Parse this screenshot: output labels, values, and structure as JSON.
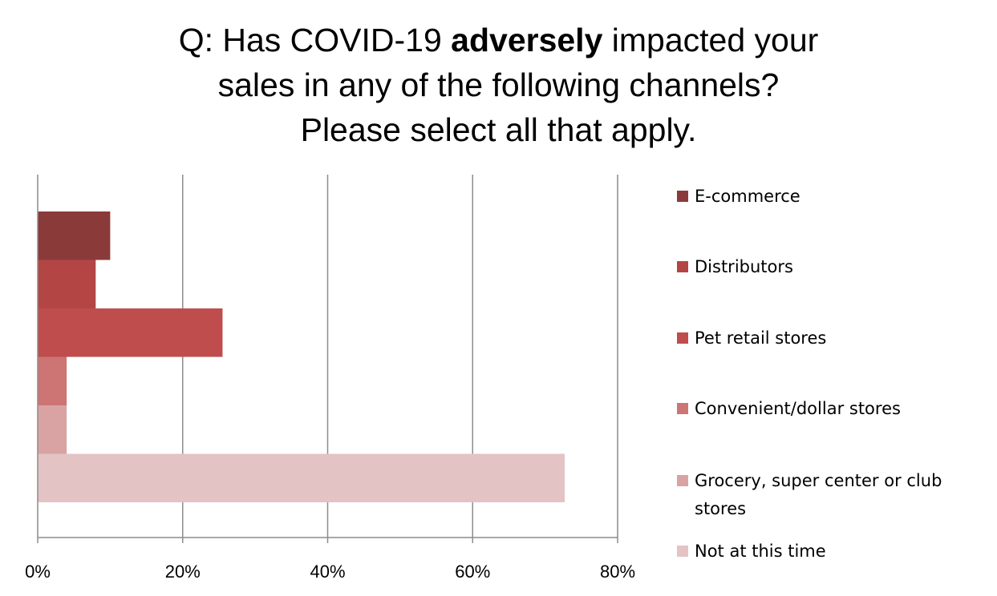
{
  "chart_data": {
    "type": "bar",
    "orientation": "horizontal",
    "title": {
      "prefix": "Q: Has COVID-19 ",
      "emphasis": "adversely",
      "line1_rest": " impacted your",
      "line2": "sales in any of the following channels?",
      "line3": "Please select all that apply."
    },
    "categories": [
      "E-commerce",
      "Distributors",
      "Pet retail stores",
      "Convenient/dollar stores",
      "Grocery, super center or club stores",
      "Not at this time"
    ],
    "values": [
      10,
      8,
      25.5,
      4,
      4,
      72.7
    ],
    "unit": "%",
    "xlim": [
      0,
      80
    ],
    "xticks": [
      0,
      20,
      40,
      60,
      80
    ],
    "xtick_labels": [
      "0%",
      "20%",
      "40%",
      "60%",
      "80%"
    ],
    "grid": true,
    "legend_position": "right",
    "colors": [
      "#8b3a3a",
      "#b34545",
      "#bf4d4d",
      "#cd7474",
      "#d9a3a3",
      "#e3c3c4"
    ]
  }
}
